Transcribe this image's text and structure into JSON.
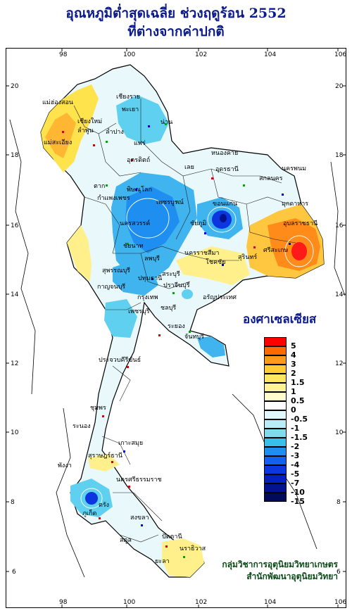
{
  "title": {
    "line1": "อุณหภูมิต่ำสุดเฉลี่ย ช่วงฤดูร้อน 2552",
    "line2": "ที่ต่างจากค่าปกติ"
  },
  "map": {
    "lon_ticks": [
      "98",
      "100",
      "102",
      "104",
      "106"
    ],
    "lat_ticks": [
      "20",
      "18",
      "16",
      "14",
      "12",
      "10",
      "8",
      "6"
    ],
    "unit_label": "องศาเซลเซียส",
    "place_labels": [
      "แม่ฮ่องสอน",
      "เชียงราย",
      "พะเยา",
      "เชียงใหม่",
      "น่าน",
      "ลำพูน",
      "ลำปาง",
      "แพร่",
      "แม่สะเอียง",
      "อุตรดิตถ์",
      "หนองคาย",
      "อุดรธานี",
      "นครพนม",
      "เลย",
      "สกลนคร",
      "ตาก",
      "พิษณุโลก",
      "กำแพงเพชร",
      "เพชรบูรณ์",
      "ขอนแก่น",
      "มุกดาหาร",
      "ชัยภูมิ",
      "นครสวรรค์",
      "อุบลราชธานี",
      "ชัยนาท",
      "นครราชสีมา",
      "โชคชัย",
      "สุรินทร์",
      "ศรีสะเกษ",
      "ลพบุรี",
      "สุพรรณบุรี",
      "ปทุมธานี",
      "กาญจนบุรี",
      "สระบุรี",
      "ปราจีนบุรี",
      "อรัญประเทศ",
      "กรุงเทพ",
      "ชลบุรี",
      "ระยอง",
      "เพชรบุรี",
      "จันทบุรี",
      "ประจวบคีรีขันธ์",
      "ชุมพร",
      "ระนอง",
      "เกาะสมุย",
      "สุราษฎร์ธานี",
      "พังงา",
      "นครศรีธรรมราช",
      "ภูเก็ต",
      "ตรัง",
      "สงขลา",
      "ปัตตานี",
      "นราธิวาส",
      "สตูล",
      "ยะลา"
    ]
  },
  "legend": [
    {
      "label": "5",
      "color": "#ff0000"
    },
    {
      "label": "4",
      "color": "#ff6a00"
    },
    {
      "label": "3",
      "color": "#ff9a1a"
    },
    {
      "label": "2",
      "color": "#ffcc33"
    },
    {
      "label": "1.5",
      "color": "#ffe766"
    },
    {
      "label": "1",
      "color": "#fff399"
    },
    {
      "label": "0.5",
      "color": "#fffbcc"
    },
    {
      "label": "0",
      "color": "#ffffff"
    },
    {
      "label": "-0.5",
      "color": "#e0f7fb"
    },
    {
      "label": "-1",
      "color": "#b8ecf6"
    },
    {
      "label": "-1.5",
      "color": "#7fdcef"
    },
    {
      "label": "-2",
      "color": "#37c0ea"
    },
    {
      "label": "-3",
      "color": "#1e8ff0"
    },
    {
      "label": "-4",
      "color": "#1560f0"
    },
    {
      "label": "-5",
      "color": "#0b36e0"
    },
    {
      "label": "-7",
      "color": "#061fbf"
    },
    {
      "label": "-10",
      "color": "#03128f"
    },
    {
      "label": "-15",
      "color": "#020a5c"
    }
  ],
  "credit": {
    "line1": "กลุ่มวิชาการอุตุนิยมวิทยาเกษตร",
    "line2": "สำนักพัฒนาอุตุนิยมวิทยา"
  }
}
